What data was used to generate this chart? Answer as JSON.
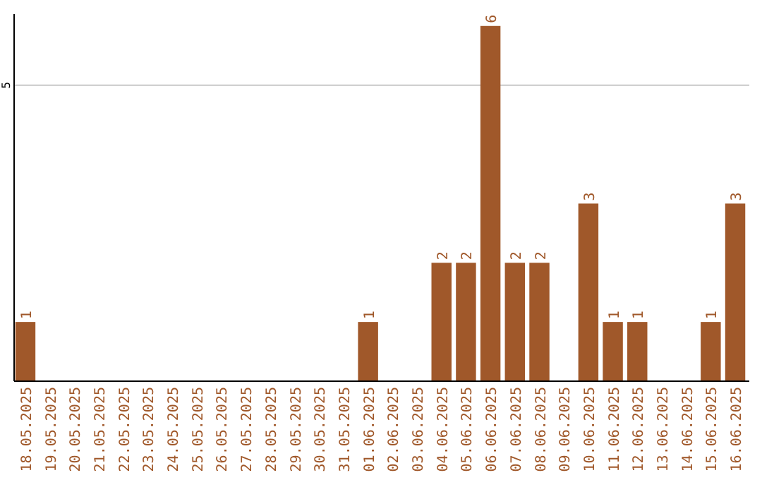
{
  "chart_data": {
    "type": "bar",
    "categories": [
      "18.05.2025",
      "19.05.2025",
      "20.05.2025",
      "21.05.2025",
      "22.05.2025",
      "23.05.2025",
      "24.05.2025",
      "25.05.2025",
      "26.05.2025",
      "27.05.2025",
      "28.05.2025",
      "29.05.2025",
      "30.05.2025",
      "31.05.2025",
      "01.06.2025",
      "02.06.2025",
      "03.06.2025",
      "04.06.2025",
      "05.06.2025",
      "06.06.2025",
      "07.06.2025",
      "08.06.2025",
      "09.06.2025",
      "10.06.2025",
      "11.06.2025",
      "12.06.2025",
      "13.06.2025",
      "14.06.2025",
      "15.06.2025",
      "16.06.2025"
    ],
    "values": [
      1,
      0,
      0,
      0,
      0,
      0,
      0,
      0,
      0,
      0,
      0,
      0,
      0,
      0,
      1,
      0,
      0,
      2,
      2,
      6,
      2,
      2,
      0,
      3,
      1,
      1,
      0,
      0,
      1,
      3
    ],
    "value_labels": [
      "1",
      null,
      null,
      null,
      null,
      null,
      null,
      null,
      null,
      null,
      null,
      null,
      null,
      null,
      "1",
      null,
      null,
      "2",
      "2",
      "6",
      "2",
      "2",
      null,
      "3",
      "1",
      "1",
      null,
      null,
      "1",
      "3"
    ],
    "color": "#a0582a",
    "ylim": [
      0,
      6.2
    ],
    "yticks": [
      5
    ],
    "grid": "y"
  }
}
